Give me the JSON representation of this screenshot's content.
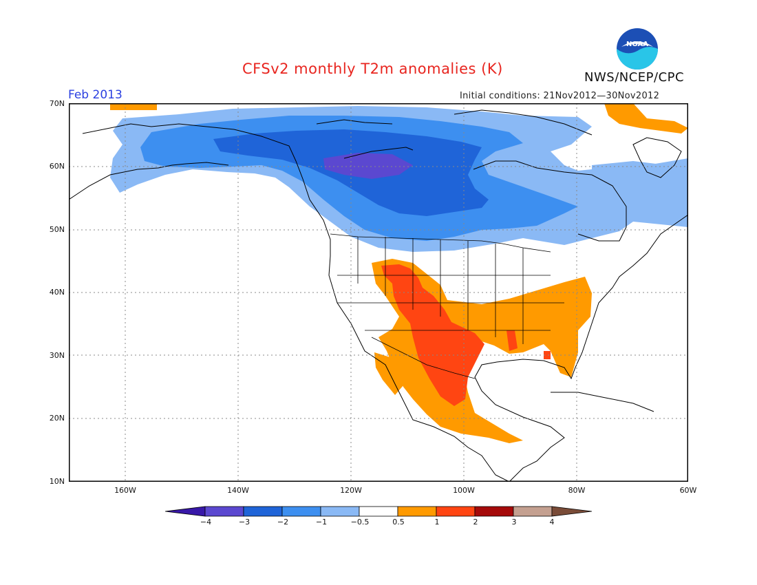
{
  "header": {
    "title": "CFSv2 monthly T2m anomalies (K)",
    "month": "Feb 2013",
    "initial_conditions": "Initial conditions: 21Nov2012—30Nov2012",
    "agency": "NWS/NCEP/CPC",
    "logo_text": "NOAA"
  },
  "map": {
    "lat_labels": [
      "70N",
      "60N",
      "50N",
      "40N",
      "30N",
      "20N",
      "10N"
    ],
    "lon_labels": [
      "160W",
      "140W",
      "120W",
      "100W",
      "80W",
      "60W"
    ],
    "extent": {
      "lon_min": -172,
      "lon_max": -62,
      "lat_min": 10,
      "lat_max": 70
    }
  },
  "legend": {
    "labels": [
      "−4",
      "−3",
      "−2",
      "−1",
      "−0.5",
      "0.5",
      "1",
      "2",
      "3",
      "4"
    ],
    "colors": [
      "#3818a8",
      "#5b48d0",
      "#1f64d8",
      "#3d8ff0",
      "#8ab9f5",
      "#ffffff",
      "#ff9a00",
      "#ff4512",
      "#a50a0a",
      "#c4a090",
      "#7a4c38"
    ]
  },
  "colors": {
    "title": "#e8251f",
    "month": "#2a3fe0",
    "grid": "#888888",
    "coast": "#000000"
  }
}
